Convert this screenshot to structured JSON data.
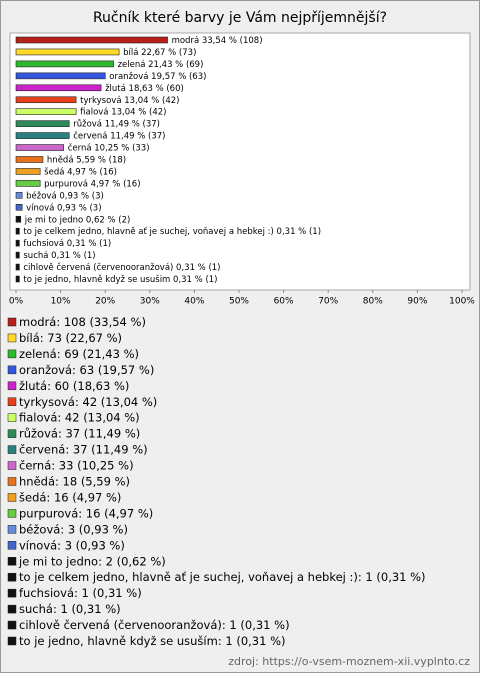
{
  "chart_data": {
    "type": "barh",
    "title": "Ručník které barvy je Vám nejpříjemnější?",
    "values": [
      33.54,
      22.67,
      21.43,
      19.57,
      18.63,
      13.04,
      13.04,
      11.49,
      11.49,
      10.25,
      5.59,
      4.97,
      4.97,
      0.93,
      0.93,
      0.62,
      0.31,
      0.31,
      0.31,
      0.31,
      0.31
    ],
    "value_labels": [
      "modrá 33,54 % (108)",
      "bílá 22,67 % (73)",
      "zelená 21,43 % (69)",
      "oranžová 19,57 % (63)",
      "žlutá 18,63 % (60)",
      "tyrkysová 13,04 % (42)",
      "fialová 13,04 % (42)",
      "růžová 11,49 % (37)",
      "červená 11,49 % (37)",
      "černá 10,25 % (33)",
      "hnědá 5,59 % (18)",
      "šedá 4,97 % (16)",
      "purpurová 4,97 % (16)",
      "béžová 0,93 % (3)",
      "vínová 0,93 % (3)",
      "je mi to jedno 0,62 % (2)",
      "to je celkem jedno, hlavně ať je suchej, voňavej a hebkej :) 0,31 % (1)",
      "fuchsiová 0,31 % (1)",
      "suchá 0,31 % (1)",
      "cihlově červená (červenooranžová) 0,31 % (1)",
      "to je jedno, hlavně když se usušim 0,31 % (1)"
    ],
    "colors": [
      "#b8201c",
      "#ffd92a",
      "#2eb82e",
      "#3355dd",
      "#cc22cc",
      "#e8401c",
      "#ccff66",
      "#2e8b57",
      "#2a7f7f",
      "#cc66cc",
      "#e8701c",
      "#f0a020",
      "#66cc44",
      "#6688dd",
      "#4466cc",
      "#111111",
      "#111111",
      "#111111",
      "#111111",
      "#111111",
      "#111111"
    ],
    "legend": [
      "modrá: 108 (33,54 %)",
      "bílá: 73 (22,67 %)",
      "zelená: 69 (21,43 %)",
      "oranžová: 63 (19,57 %)",
      "žlutá: 60 (18,63 %)",
      "tyrkysová: 42 (13,04 %)",
      "fialová: 42 (13,04 %)",
      "růžová: 37 (11,49 %)",
      "červená: 37 (11,49 %)",
      "černá: 33 (10,25 %)",
      "hnědá: 18 (5,59 %)",
      "šedá: 16 (4,97 %)",
      "purpurová: 16 (4,97 %)",
      "béžová: 3 (0,93 %)",
      "vínová: 3 (0,93 %)",
      "je mi to jedno: 2 (0,62 %)",
      "to je celkem jedno, hlavně ať je suchej, voňavej a hebkej :): 1 (0,31 %)",
      "fuchsiová: 1 (0,31 %)",
      "suchá: 1 (0,31 %)",
      "cihlově červená (červenooranžová): 1 (0,31 %)",
      "to je jedno, hlavně když se usuším: 1 (0,31 %)"
    ],
    "xlim": [
      0,
      100
    ],
    "xticks": [
      {
        "value": 0,
        "label": "0%"
      },
      {
        "value": 10,
        "label": "10%"
      },
      {
        "value": 20,
        "label": "20%"
      },
      {
        "value": 30,
        "label": "30%"
      },
      {
        "value": 40,
        "label": "40%"
      },
      {
        "value": 50,
        "label": "50%"
      },
      {
        "value": 60,
        "label": "60%"
      },
      {
        "value": 70,
        "label": "70%"
      },
      {
        "value": 80,
        "label": "80%"
      },
      {
        "value": 90,
        "label": "90%"
      },
      {
        "value": 100,
        "label": "100%"
      }
    ],
    "source": "zdroj: https://o-vsem-moznem-xii.vyplnto.cz"
  }
}
